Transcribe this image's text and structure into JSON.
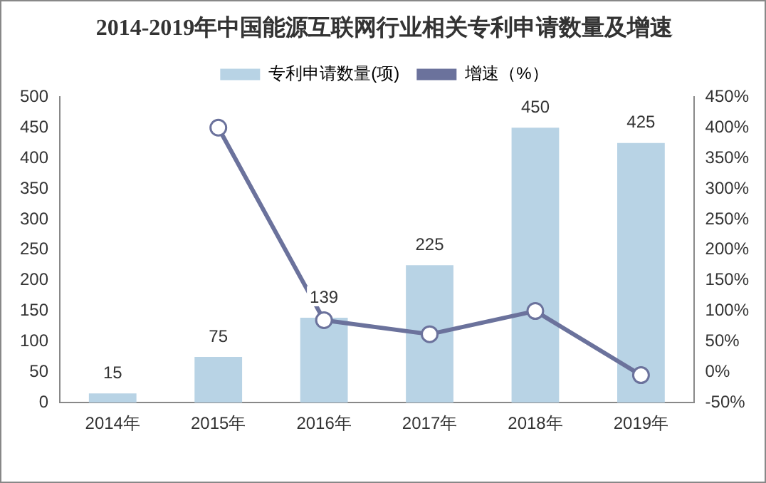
{
  "chart_data": {
    "type": "bar",
    "title": "2014-2019年中国能源互联网行业相关专利申请数量及增速",
    "categories": [
      "2014年",
      "2015年",
      "2016年",
      "2017年",
      "2018年",
      "2019年"
    ],
    "series": [
      {
        "name": "专利申请数量(项)",
        "color": "#b8d3e5",
        "values": [
          15,
          75,
          139,
          225,
          450,
          425
        ],
        "value_labels": [
          "15",
          "75",
          "139",
          "225",
          "450",
          "425"
        ]
      },
      {
        "name": "增速（%）",
        "type": "line",
        "axis": "y2",
        "color": "#6b729c",
        "values": [
          null,
          400,
          85,
          62,
          100,
          -5
        ]
      }
    ],
    "ylim": [
      0,
      500
    ],
    "yticks": [
      0,
      50,
      100,
      150,
      200,
      250,
      300,
      350,
      400,
      450,
      500
    ],
    "y2lim": [
      -50,
      450
    ],
    "y2ticks": [
      {
        "value": -50,
        "label": "-50%"
      },
      {
        "value": 0,
        "label": "0%"
      },
      {
        "value": 50,
        "label": "50%"
      },
      {
        "value": 100,
        "label": "100%"
      },
      {
        "value": 150,
        "label": "150%"
      },
      {
        "value": 200,
        "label": "200%"
      },
      {
        "value": 250,
        "label": "250%"
      },
      {
        "value": 300,
        "label": "300%"
      },
      {
        "value": 350,
        "label": "350%"
      },
      {
        "value": 400,
        "label": "400%"
      },
      {
        "value": 450,
        "label": "450%"
      }
    ],
    "grid": false,
    "legend": "top",
    "marker": "circle",
    "line_style": "solid"
  }
}
